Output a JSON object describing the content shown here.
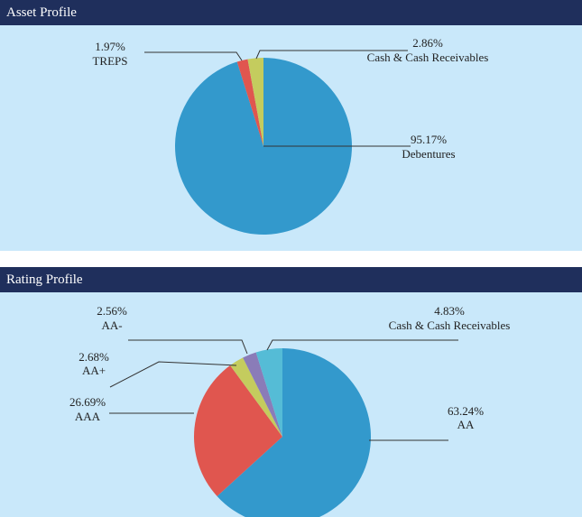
{
  "colors": {
    "header_bg": "#1f2f5c",
    "panel_bg": "#c9e8fa",
    "leader": "#333333"
  },
  "chart_data": [
    {
      "type": "pie",
      "title": "Asset Profile",
      "slices": [
        {
          "label": "Debentures",
          "value": 95.17,
          "value_label": "95.17%",
          "color": "#3399cc"
        },
        {
          "label": "TREPS",
          "value": 1.97,
          "value_label": "1.97%",
          "color": "#e0564f"
        },
        {
          "label": "Cash & Cash Receivables",
          "value": 2.86,
          "value_label": "2.86%",
          "color": "#c4cc5e"
        }
      ]
    },
    {
      "type": "pie",
      "title": "Rating Profile",
      "slices": [
        {
          "label": "AA",
          "value": 63.24,
          "value_label": "63.24%",
          "color": "#3399cc"
        },
        {
          "label": "AAA",
          "value": 26.69,
          "value_label": "26.69%",
          "color": "#e0564f"
        },
        {
          "label": "AA+",
          "value": 2.68,
          "value_label": "2.68%",
          "color": "#c4cc5e"
        },
        {
          "label": "AA-",
          "value": 2.56,
          "value_label": "2.56%",
          "color": "#8a7cb8"
        },
        {
          "label": "Cash & Cash Receivables",
          "value": 4.83,
          "value_label": "4.83%",
          "color": "#55bcd6"
        }
      ]
    }
  ]
}
